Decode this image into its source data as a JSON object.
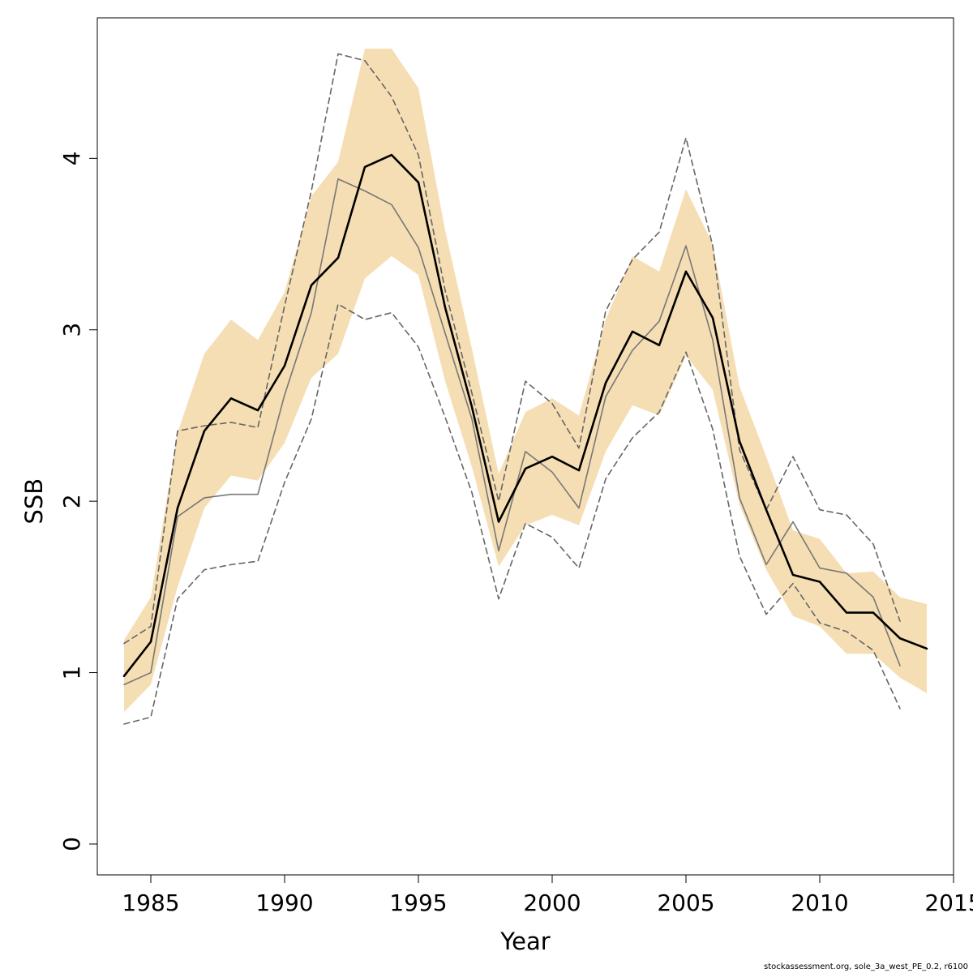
{
  "chart_data": {
    "type": "line",
    "xlabel": "Year",
    "ylabel": "SSB",
    "xlim": [
      1983,
      2015
    ],
    "ylim": [
      -0.18,
      4.82
    ],
    "x_ticks": [
      1985,
      1990,
      1995,
      2000,
      2005,
      2010,
      2015
    ],
    "y_ticks": [
      0,
      1,
      2,
      3,
      4
    ],
    "band_color": "#f5deb3",
    "series": [
      {
        "style": "band",
        "x": [
          1984,
          1985,
          1986,
          1987,
          1988,
          1989,
          1990,
          1991,
          1992,
          1993,
          1994,
          1995,
          1996,
          1997,
          1998,
          1999,
          2000,
          2001,
          2002,
          2003,
          2004,
          2005,
          2006,
          2007,
          2008,
          2009,
          2010,
          2011,
          2012,
          2013,
          2014
        ],
        "lower": [
          0.77,
          0.93,
          1.5,
          1.96,
          2.15,
          2.12,
          2.34,
          2.72,
          2.86,
          3.3,
          3.43,
          3.32,
          2.7,
          2.2,
          1.62,
          1.86,
          1.92,
          1.86,
          2.29,
          2.56,
          2.5,
          2.85,
          2.65,
          1.98,
          1.6,
          1.33,
          1.27,
          1.11,
          1.11,
          0.97,
          0.88
        ],
        "upper": [
          1.19,
          1.44,
          2.4,
          2.86,
          3.06,
          2.94,
          3.22,
          3.78,
          3.98,
          4.64,
          4.64,
          4.41,
          3.58,
          2.89,
          2.16,
          2.52,
          2.6,
          2.5,
          3.06,
          3.43,
          3.34,
          3.82,
          3.5,
          2.67,
          2.26,
          1.83,
          1.78,
          1.58,
          1.59,
          1.44,
          1.4
        ]
      },
      {
        "style": "solid-thick",
        "color": "#000000",
        "x": [
          1984,
          1985,
          1986,
          1987,
          1988,
          1989,
          1990,
          1991,
          1992,
          1993,
          1994,
          1995,
          1996,
          1997,
          1998,
          1999,
          2000,
          2001,
          2002,
          2003,
          2004,
          2005,
          2006,
          2007,
          2008,
          2009,
          2010,
          2011,
          2012,
          2013,
          2014
        ],
        "values": [
          0.98,
          1.18,
          1.96,
          2.41,
          2.6,
          2.53,
          2.79,
          3.26,
          3.42,
          3.95,
          4.02,
          3.86,
          3.13,
          2.55,
          1.88,
          2.19,
          2.26,
          2.18,
          2.69,
          2.99,
          2.91,
          3.34,
          3.07,
          2.35,
          1.95,
          1.57,
          1.53,
          1.35,
          1.35,
          1.2,
          1.14
        ]
      },
      {
        "style": "solid-thin",
        "color": "#777777",
        "x": [
          1984,
          1985,
          1986,
          1987,
          1988,
          1989,
          1990,
          1991,
          1992,
          1993,
          1994,
          1995,
          1996,
          1997,
          1998,
          1999,
          2000,
          2001,
          2002,
          2003,
          2004,
          2005,
          2006,
          2007,
          2008,
          2009,
          2010,
          2011,
          2012,
          2013
        ],
        "values": [
          0.93,
          1.0,
          1.91,
          2.02,
          2.04,
          2.04,
          2.62,
          3.1,
          3.88,
          3.81,
          3.73,
          3.48,
          2.98,
          2.48,
          1.71,
          2.29,
          2.17,
          1.96,
          2.61,
          2.88,
          3.05,
          3.49,
          2.94,
          2.02,
          1.63,
          1.88,
          1.61,
          1.58,
          1.44,
          1.04
        ]
      },
      {
        "style": "dashed",
        "color": "#666666",
        "x": [
          1984,
          1985,
          1986,
          1987,
          1988,
          1989,
          1990,
          1991,
          1992,
          1993,
          1994,
          1995,
          1996,
          1997,
          1998,
          1999,
          2000,
          2001,
          2002,
          2003,
          2004,
          2005,
          2006,
          2007,
          2008,
          2009,
          2010,
          2011,
          2012,
          2013
        ],
        "values": [
          1.17,
          1.27,
          2.41,
          2.44,
          2.46,
          2.43,
          3.14,
          3.81,
          4.61,
          4.57,
          4.36,
          4.02,
          3.23,
          2.63,
          2.0,
          2.7,
          2.57,
          2.31,
          3.11,
          3.41,
          3.57,
          4.12,
          3.49,
          2.3,
          1.95,
          2.26,
          1.95,
          1.92,
          1.75,
          1.3
        ]
      },
      {
        "style": "dashed",
        "color": "#666666",
        "x": [
          1984,
          1985,
          1986,
          1987,
          1988,
          1989,
          1990,
          1991,
          1992,
          1993,
          1994,
          1995,
          1996,
          1997,
          1998,
          1999,
          2000,
          2001,
          2002,
          2003,
          2004,
          2005,
          2006,
          2007,
          2008,
          2009,
          2010,
          2011,
          2012,
          2013
        ],
        "values": [
          0.7,
          0.74,
          1.43,
          1.6,
          1.63,
          1.65,
          2.11,
          2.48,
          3.15,
          3.06,
          3.1,
          2.9,
          2.49,
          2.05,
          1.43,
          1.87,
          1.79,
          1.61,
          2.13,
          2.37,
          2.52,
          2.87,
          2.42,
          1.68,
          1.34,
          1.52,
          1.29,
          1.24,
          1.13,
          0.79
        ]
      }
    ]
  },
  "footer_text": "stockassessment.org, sole_3a_west_PE_0.2, r6100"
}
